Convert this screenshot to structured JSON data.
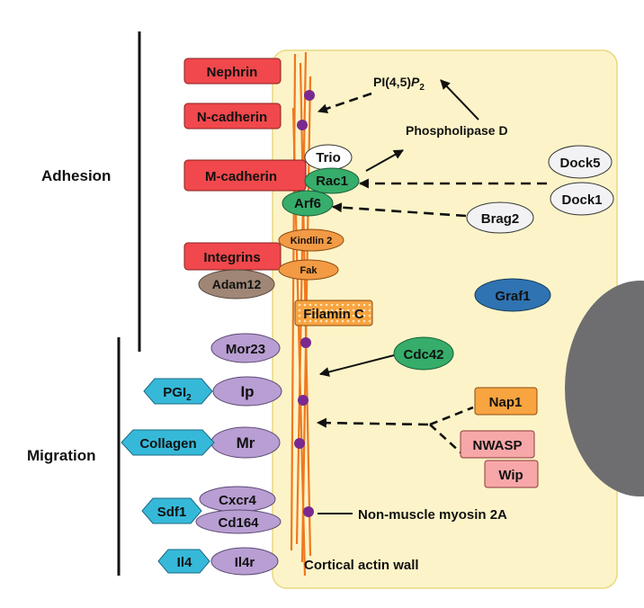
{
  "sections": {
    "adhesion": "Adhesion",
    "migration": "Migration"
  },
  "receptors": {
    "nephrin": "Nephrin",
    "n_cadherin": "N-cadherin",
    "m_cadherin": "M-cadherin",
    "integrins": "Integrins",
    "adam12": "Adam12",
    "mor23": "Mor23",
    "ip": "Ip",
    "mr": "Mr",
    "cxcr4": "Cxcr4",
    "cd164": "Cd164",
    "il4r": "Il4r"
  },
  "ligands": {
    "pgi2": "PGI",
    "pgi2_sub": "2",
    "collagen": "Collagen",
    "sdf1": "Sdf1",
    "il4": "Il4"
  },
  "intracellular": {
    "trio": "Trio",
    "rac1": "Rac1",
    "arf6": "Arf6",
    "kindlin2": "Kindlin 2",
    "fak": "Fak",
    "filamin_c": "Filamin C",
    "dock5": "Dock5",
    "dock1": "Dock1",
    "brag2": "Brag2",
    "graf1": "Graf1",
    "cdc42": "Cdc42",
    "nap1": "Nap1",
    "nwasp": "NWASP",
    "wip": "Wip"
  },
  "labels": {
    "pip2_main": "PI(4,5)",
    "pip2_p": "P",
    "pip2_sub": "2",
    "phospholipase_d": "Phospholipase D",
    "myosin": "Non-muscle myosin 2A",
    "actin_wall": "Cortical actin wall"
  },
  "colors": {
    "cell": "#fcf4c8",
    "cell_border": "#e8d880",
    "nucleus": "#6e6e70",
    "red": "#f0484c",
    "purple": "#b89ed2",
    "cyan": "#36b9d9",
    "green": "#36ad6a",
    "orange_box": "#f8a440",
    "pink": "#f7a7a8",
    "blue": "#2f73b2",
    "brown": "#9f8676",
    "actin": "#f07820",
    "dot": "#7a2a8e"
  }
}
